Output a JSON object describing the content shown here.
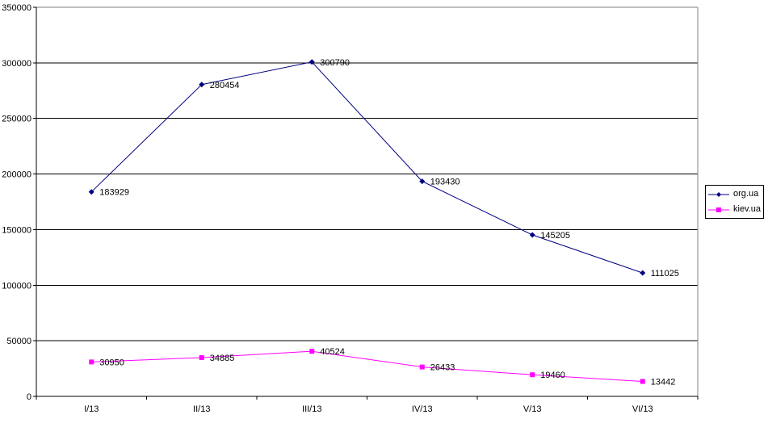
{
  "chart_data": {
    "type": "line",
    "categories": [
      "I/13",
      "II/13",
      "III/13",
      "IV/13",
      "V/13",
      "VI/13"
    ],
    "ylim": [
      0,
      350000
    ],
    "yticks": [
      "0",
      "50000",
      "100000",
      "150000",
      "200000",
      "250000",
      "300000",
      "350000"
    ],
    "grid": "horizontal",
    "legend_position": "right",
    "series": [
      {
        "name": "org.ua",
        "color": "#000080",
        "marker": "diamond",
        "values": [
          183929,
          280454,
          300790,
          193430,
          145205,
          111025
        ],
        "labels": [
          "183929",
          "280454",
          "300790",
          "193430",
          "145205",
          "111025"
        ]
      },
      {
        "name": "kiev.ua",
        "color": "#FF00FF",
        "marker": "square",
        "values": [
          30950,
          34885,
          40524,
          26433,
          19460,
          13442
        ],
        "labels": [
          "30950",
          "34885",
          "40524",
          "26433",
          "19460",
          "13442"
        ]
      }
    ]
  }
}
